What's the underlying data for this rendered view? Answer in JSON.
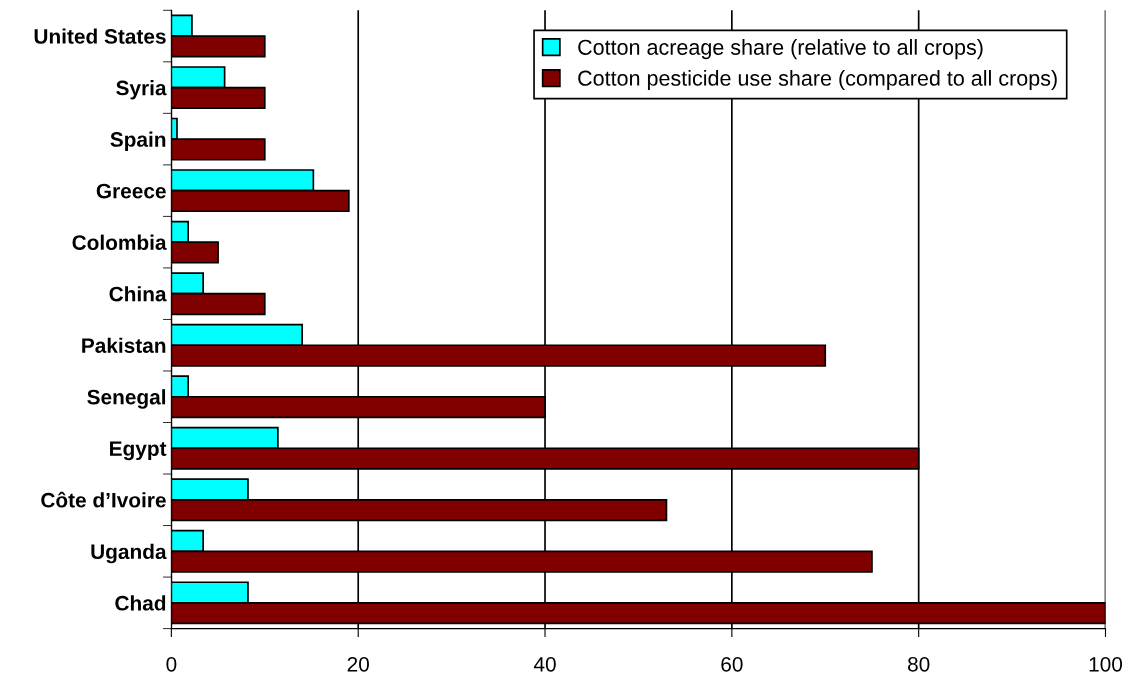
{
  "chart_data": {
    "type": "bar",
    "orientation": "horizontal",
    "categories": [
      "United States",
      "Syria",
      "Spain",
      "Greece",
      "Colombia",
      "China",
      "Pakistan",
      "Senegal",
      "Egypt",
      "Côte d’Ivoire",
      "Uganda",
      "Chad"
    ],
    "series": [
      {
        "name": "Cotton acreage share (relative to all crops)",
        "color": "#00ffff",
        "values": [
          2.2,
          5.7,
          0.6,
          15.2,
          1.8,
          3.4,
          14.0,
          1.8,
          11.4,
          8.2,
          3.4,
          8.2
        ]
      },
      {
        "name": "Cotton pesticide use share (compared to all crops)",
        "color": "#800000",
        "values": [
          10,
          10,
          10,
          19,
          5,
          10,
          70,
          40,
          80,
          53,
          75,
          100
        ]
      }
    ],
    "xlim": [
      0,
      100
    ],
    "xticks": [
      0,
      20,
      40,
      60,
      80,
      100
    ],
    "grid": "x",
    "legend": "top right"
  }
}
